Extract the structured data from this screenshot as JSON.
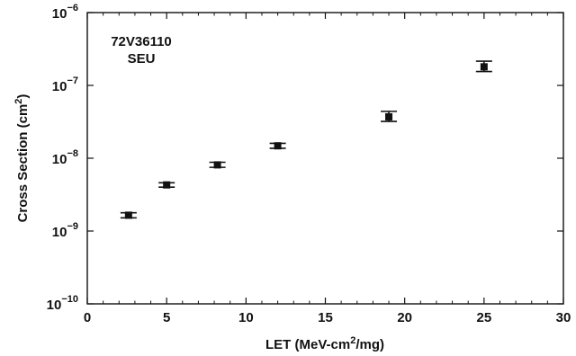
{
  "chart_data": {
    "type": "scatter",
    "title": "",
    "annotation_lines": [
      "72V36110",
      "SEU"
    ],
    "xlabel_parts": {
      "pre": "LET (MeV-cm",
      "sup": "2",
      "post": "/mg)"
    },
    "ylabel_parts": {
      "pre": "Cross Section (cm",
      "sup": "2",
      "post": ")"
    },
    "xlim": [
      0,
      30
    ],
    "ylim": [
      1e-10,
      1e-06
    ],
    "y_scale": "log",
    "grid": false,
    "legend": "none",
    "x_ticks": [
      {
        "value": 0,
        "label": "0"
      },
      {
        "value": 5,
        "label": "5"
      },
      {
        "value": 10,
        "label": "10"
      },
      {
        "value": 15,
        "label": "15"
      },
      {
        "value": 20,
        "label": "20"
      },
      {
        "value": 25,
        "label": "25"
      },
      {
        "value": 30,
        "label": "30"
      }
    ],
    "y_ticks": [
      {
        "value": 1e-10,
        "base": "10",
        "exp": "−10"
      },
      {
        "value": 1e-09,
        "base": "10",
        "exp": "−9"
      },
      {
        "value": 1e-08,
        "base": "10",
        "exp": "−8"
      },
      {
        "value": 1e-07,
        "base": "10",
        "exp": "−7"
      },
      {
        "value": 1e-06,
        "base": "10",
        "exp": "−6"
      }
    ],
    "series": [
      {
        "marker_color": "#111111",
        "points": [
          {
            "x": 2.6,
            "y": 1.65e-09,
            "y_low": 1.52e-09,
            "y_high": 1.78e-09
          },
          {
            "x": 5.0,
            "y": 4.3e-09,
            "y_low": 4e-09,
            "y_high": 4.6e-09
          },
          {
            "x": 8.2,
            "y": 8.1e-09,
            "y_low": 7.5e-09,
            "y_high": 8.8e-09
          },
          {
            "x": 12.0,
            "y": 1.48e-08,
            "y_low": 1.37e-08,
            "y_high": 1.6e-08
          },
          {
            "x": 19.0,
            "y": 3.7e-08,
            "y_low": 3.2e-08,
            "y_high": 4.4e-08
          },
          {
            "x": 25.0,
            "y": 1.8e-07,
            "y_low": 1.55e-07,
            "y_high": 2.15e-07
          }
        ]
      }
    ]
  }
}
